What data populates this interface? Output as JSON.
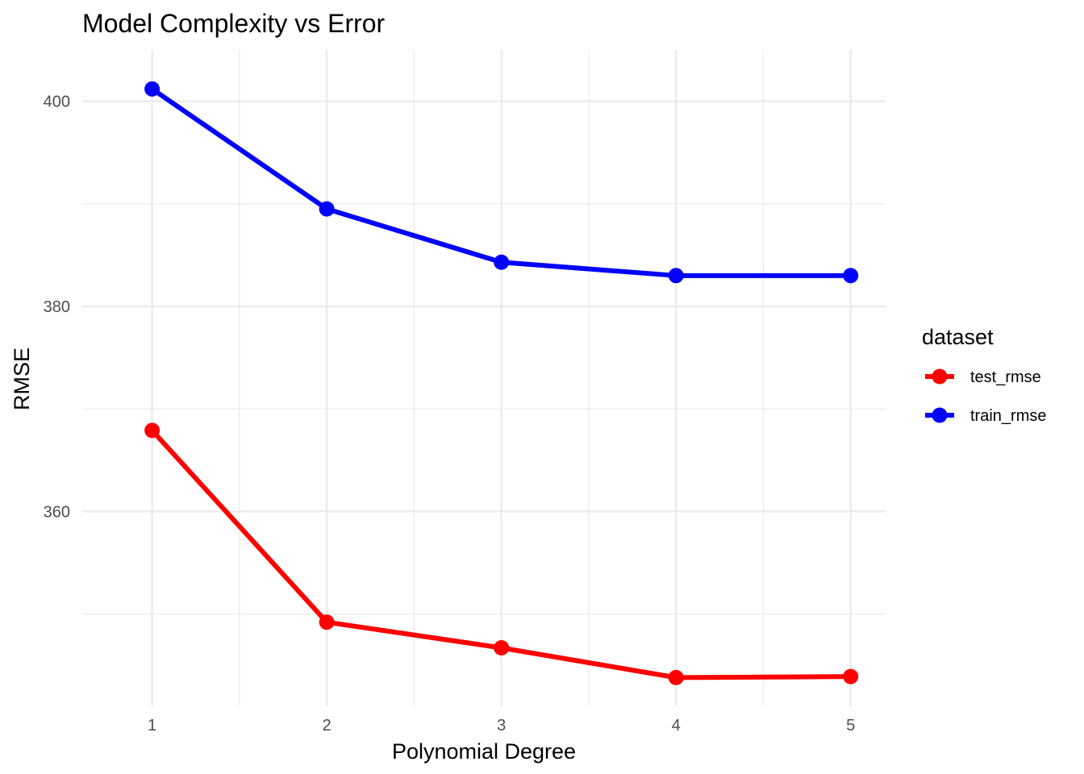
{
  "chart_data": {
    "type": "line",
    "title": "Model Complexity vs Error",
    "xlabel": "Polynomial Degree",
    "ylabel": "RMSE",
    "x": [
      1,
      2,
      3,
      4,
      5
    ],
    "x_tick_labels": [
      "1",
      "2",
      "3",
      "4",
      "5"
    ],
    "y_ticks": [
      360,
      380,
      400
    ],
    "y_tick_labels": [
      "360",
      "380",
      "400"
    ],
    "xlim": [
      0.6,
      5.2
    ],
    "ylim": [
      341.0,
      405.0
    ],
    "grid": true,
    "legend": {
      "title": "dataset",
      "position": "right"
    },
    "series": [
      {
        "name": "test_rmse",
        "color": "#ff0000",
        "values": [
          367.9,
          349.2,
          346.7,
          343.8,
          343.9
        ]
      },
      {
        "name": "train_rmse",
        "color": "#0000ff",
        "values": [
          401.2,
          389.5,
          384.3,
          383.0,
          383.0
        ]
      }
    ]
  }
}
